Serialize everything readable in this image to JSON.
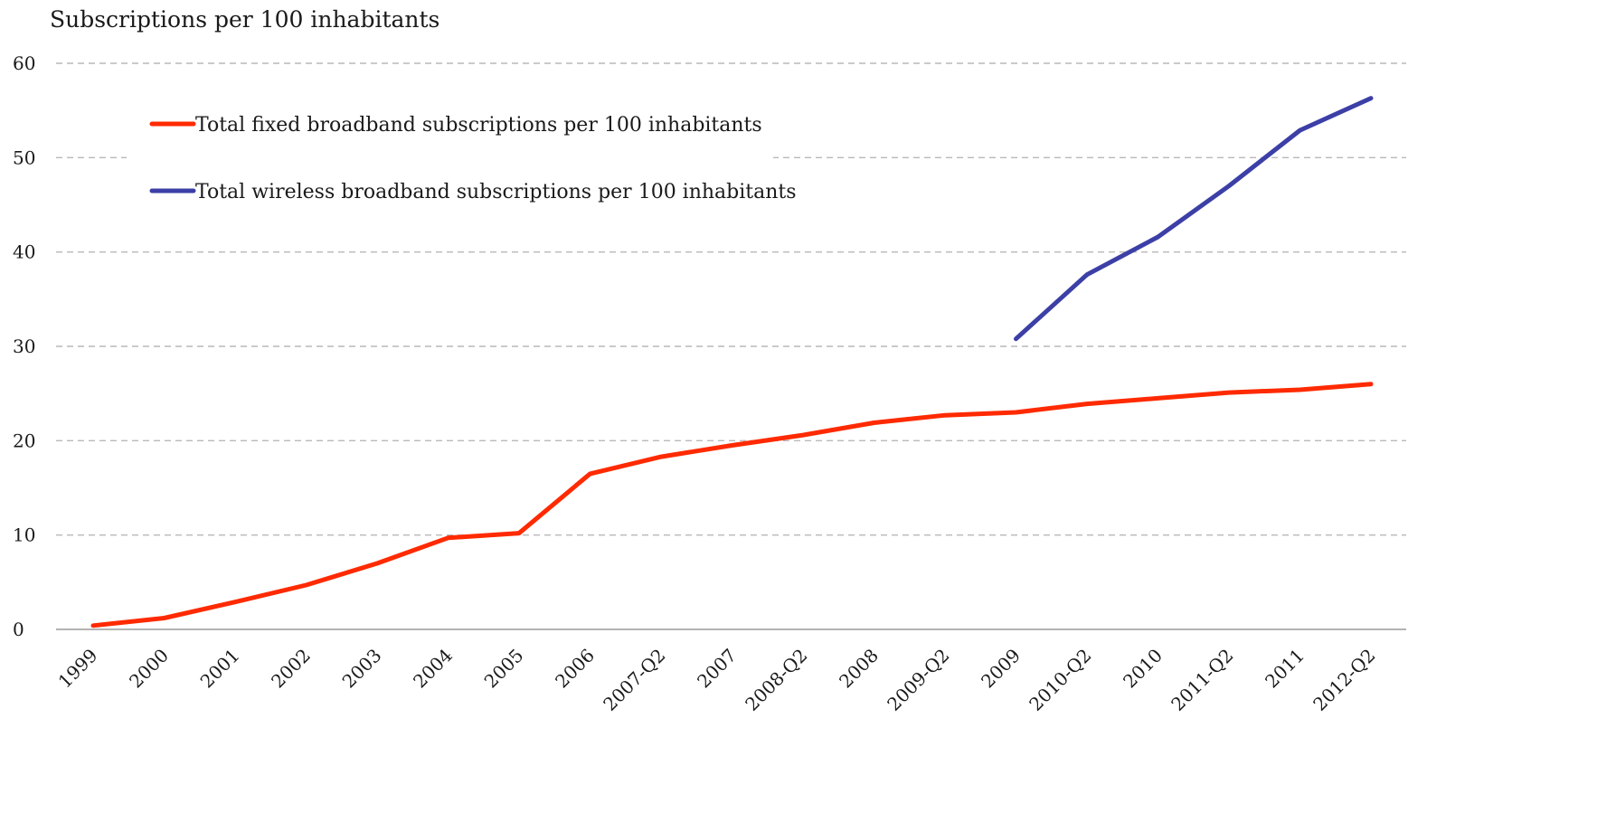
{
  "chart_data": {
    "type": "line",
    "title": "",
    "xlabel": "",
    "ylabel": "Subscriptions per 100 inhabitants",
    "categories": [
      "1999",
      "2000",
      "2001",
      "2002",
      "2003",
      "2004",
      "2005",
      "2006",
      "2007-Q2",
      "2007",
      "2008-Q2",
      "2008",
      "2009-Q2",
      "2009",
      "2010-Q2",
      "2010",
      "2011-Q2",
      "2011",
      "2012-Q2"
    ],
    "ylim": [
      0,
      60
    ],
    "yticks": [
      0,
      10,
      20,
      30,
      40,
      50,
      60
    ],
    "grid": true,
    "legend_placement": "top-left",
    "series": [
      {
        "name": "Total fixed broadband subscriptions per 100 inhabitants",
        "color": "#ff2a00",
        "values": [
          0.4,
          1.2,
          2.9,
          4.7,
          7.0,
          9.7,
          10.2,
          16.5,
          18.3,
          19.5,
          20.6,
          21.9,
          22.7,
          23.0,
          23.9,
          24.5,
          25.1,
          25.4,
          26.0
        ]
      },
      {
        "name": "Total wireless broadband subscriptions per 100 inhabitants",
        "color": "#3c3fa6",
        "values": [
          null,
          null,
          null,
          null,
          null,
          null,
          null,
          null,
          null,
          null,
          null,
          null,
          null,
          30.8,
          37.6,
          41.6,
          47.0,
          52.9,
          56.3
        ]
      }
    ]
  }
}
